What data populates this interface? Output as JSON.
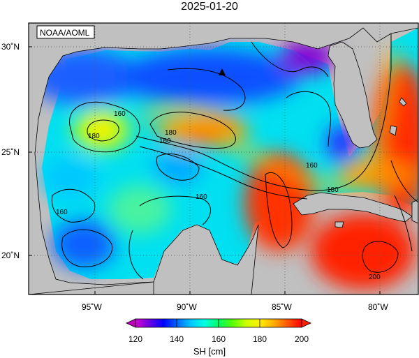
{
  "title": "2025-01-20",
  "credit": "NOAA/AOML",
  "colors": {
    "land": "#c0c0c0",
    "water_low": "#7a00d6",
    "water_mid": "#00d0e6",
    "water_high": "#ff1a00",
    "marker": "#000000"
  },
  "axes": {
    "lon_labels": [
      "95˚W",
      "90˚W",
      "85˚W",
      "80˚W"
    ],
    "lat_labels": [
      "30˚N",
      "25˚N",
      "20˚N"
    ],
    "lon_values": [
      -95,
      -90,
      -85,
      -80
    ],
    "lat_values": [
      30,
      25,
      20
    ]
  },
  "contour_labels": [
    "160",
    "180",
    "180",
    "160",
    "160",
    "160",
    "160",
    "180",
    "200"
  ],
  "colorbar": {
    "title": "SH [cm]",
    "tick_labels": [
      "120",
      "140",
      "160",
      "180",
      "200"
    ],
    "tick_values": [
      120,
      140,
      160,
      180,
      200
    ],
    "range": [
      115,
      205
    ],
    "stops": [
      "#d400d4",
      "#6a00e0",
      "#0000ff",
      "#0066ff",
      "#00c8ff",
      "#00ffe0",
      "#00ff66",
      "#55ff00",
      "#ccff00",
      "#ffee00",
      "#ffaa00",
      "#ff5500",
      "#ff0000"
    ]
  },
  "marker": {
    "shape": "triangle",
    "lon": -88.5,
    "lat": 28.7
  }
}
